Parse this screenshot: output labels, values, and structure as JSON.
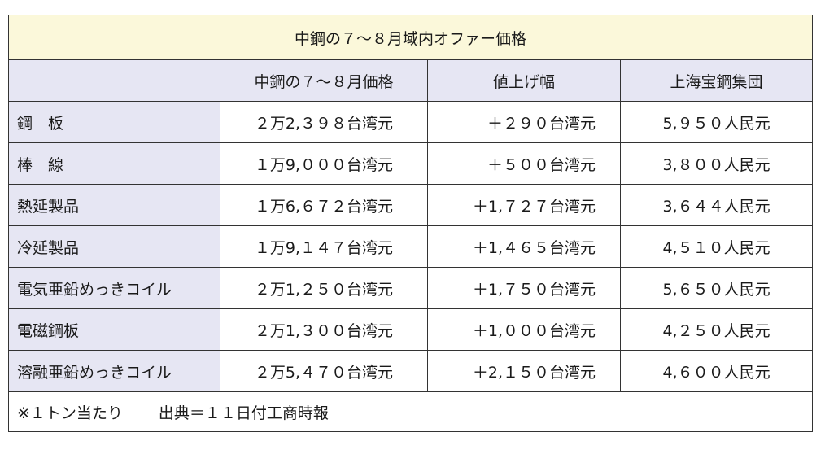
{
  "title": "中鋼の７～８月域内オファー価格",
  "headers": [
    "",
    "中鋼の７～８月価格",
    "値上げ幅",
    "上海宝鋼集団"
  ],
  "rows": [
    {
      "product": "鋼　板",
      "price": "２万2,３９８台湾元",
      "increase": "＋２９０台湾元",
      "baosteel": "5,９５０人民元"
    },
    {
      "product": "棒　線",
      "price": "１万9,０００台湾元",
      "increase": "＋５００台湾元",
      "baosteel": "3,８００人民元"
    },
    {
      "product": "熱延製品",
      "price": "１万6,６７２台湾元",
      "increase": "＋1,７２７台湾元",
      "baosteel": "3,６４４人民元"
    },
    {
      "product": "冷延製品",
      "price": "１万9,１４７台湾元",
      "increase": "＋1,４６５台湾元",
      "baosteel": "4,５１０人民元"
    },
    {
      "product": "電気亜鉛めっきコイル",
      "price": "２万1,２５０台湾元",
      "increase": "＋1,７５０台湾元",
      "baosteel": "5,６５０人民元"
    },
    {
      "product": "電磁鋼板",
      "price": "２万1,３００台湾元",
      "increase": "＋1,０００台湾元",
      "baosteel": "4,２５０人民元"
    },
    {
      "product": "溶融亜鉛めっきコイル",
      "price": "２万5,４７０台湾元",
      "increase": "＋2,１５０台湾元",
      "baosteel": "4,６００人民元"
    }
  ],
  "footnote": {
    "unit": "※１トン当たり",
    "source": "出典＝１１日付工商時報"
  }
}
